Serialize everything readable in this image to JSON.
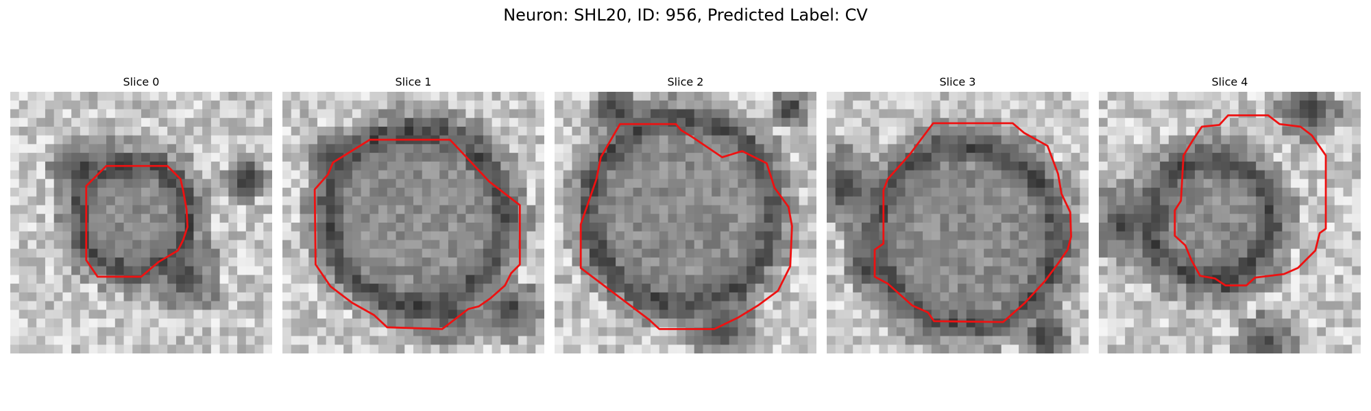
{
  "figure": {
    "title": "Neuron: SHL20, ID: 956, Predicted Label: CV"
  },
  "panels": [
    {
      "title": "Slice 0"
    },
    {
      "title": "Slice 1"
    },
    {
      "title": "Slice 2"
    },
    {
      "title": "Slice 3"
    },
    {
      "title": "Slice 4"
    }
  ],
  "colors": {
    "contour": "#ee1111",
    "background": "#ffffff"
  }
}
